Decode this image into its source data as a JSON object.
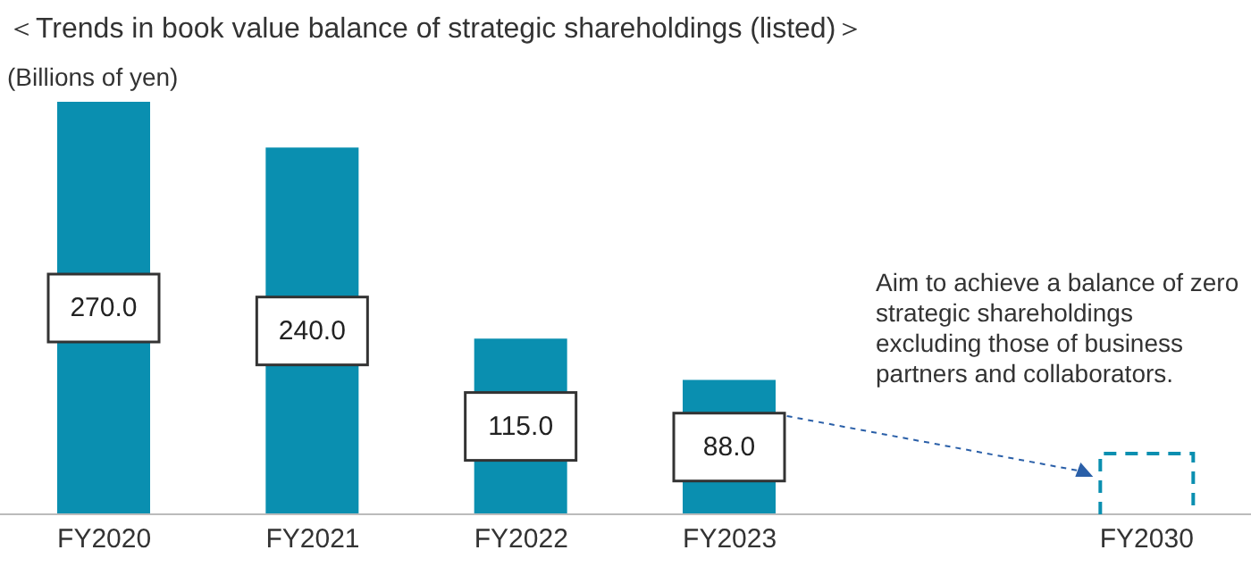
{
  "chart_data": {
    "type": "bar",
    "title": "＜Trends in book value balance of strategic shareholdings (listed)＞",
    "ylabel": "(Billions of yen)",
    "categories": [
      "FY2020",
      "FY2021",
      "FY2022",
      "FY2023",
      null,
      "FY2030"
    ],
    "values": [
      270,
      240,
      115,
      88,
      null,
      null
    ],
    "value_labels": [
      "270.0",
      "240.0",
      "115.0",
      "88.0",
      null,
      null
    ],
    "color": "#0a8fb0",
    "annotations": [
      "Aim to achieve a balance of zero strategic shareholdings excluding those of business partners and collaborators."
    ]
  }
}
